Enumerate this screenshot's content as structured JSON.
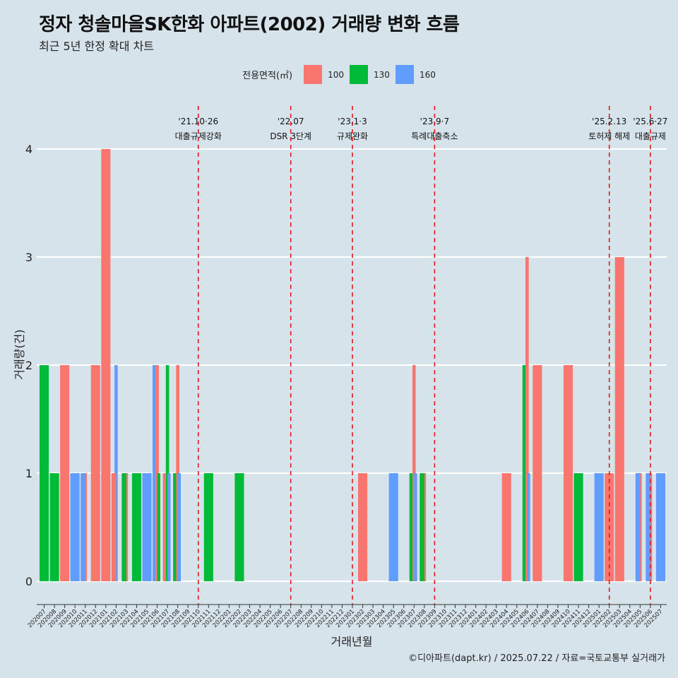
{
  "title": "정자 청솔마을SK한화 아파트(2002) 거래량 변화 흐름",
  "subtitle": "최근 5년 한정 확대 차트",
  "caption": "©디아파트(dapt.kr) / 2025.07.22 / 자료=국토교통부 실거래가",
  "legend": {
    "title": "전용면적(㎡)",
    "items": [
      {
        "label": "100",
        "color": "#f8766d"
      },
      {
        "label": "130",
        "color": "#00ba38"
      },
      {
        "label": "160",
        "color": "#619cff"
      }
    ]
  },
  "chart_data": {
    "type": "bar",
    "xlabel": "거래년월",
    "ylabel": "거래량(건)",
    "ylim": [
      0,
      4
    ],
    "yticks": [
      0,
      1,
      2,
      3,
      4
    ],
    "grid": true,
    "legend_position": "top",
    "categories": [
      "202007",
      "202008",
      "202009",
      "202010",
      "202011",
      "202012",
      "202101",
      "202102",
      "202103",
      "202104",
      "202105",
      "202106",
      "202107",
      "202108",
      "202109",
      "202110",
      "202111",
      "202112",
      "202201",
      "202202",
      "202203",
      "202204",
      "202205",
      "202206",
      "202207",
      "202208",
      "202209",
      "202210",
      "202211",
      "202212",
      "202301",
      "202302",
      "202303",
      "202304",
      "202305",
      "202306",
      "202307",
      "202308",
      "202309",
      "202310",
      "202311",
      "202312",
      "202401",
      "202402",
      "202403",
      "202404",
      "202405",
      "202406",
      "202407",
      "202408",
      "202409",
      "202410",
      "202411",
      "202412",
      "202501",
      "202502",
      "202503",
      "202504",
      "202505",
      "202506",
      "202507"
    ],
    "bars": [
      {
        "month": "202007",
        "segments": [
          {
            "area": "130",
            "value": 2
          }
        ]
      },
      {
        "month": "202008",
        "segments": [
          {
            "area": "130",
            "value": 1
          }
        ]
      },
      {
        "month": "202009",
        "segments": [
          {
            "area": "100",
            "value": 2
          }
        ]
      },
      {
        "month": "202010",
        "segments": [
          {
            "area": "160",
            "value": 1
          }
        ]
      },
      {
        "month": "202011",
        "segments": [
          {
            "area": "100",
            "value": 1
          },
          {
            "area": "160",
            "value": 1
          }
        ]
      },
      {
        "month": "202012",
        "segments": [
          {
            "area": "100",
            "value": 2
          }
        ]
      },
      {
        "month": "202101",
        "segments": [
          {
            "area": "100",
            "value": 4
          }
        ]
      },
      {
        "month": "202102",
        "segments": [
          {
            "area": "100",
            "value": 1
          },
          {
            "area": "160",
            "value": 2
          }
        ]
      },
      {
        "month": "202103",
        "segments": [
          {
            "area": "100",
            "value": 1
          },
          {
            "area": "130",
            "value": 1
          }
        ]
      },
      {
        "month": "202104",
        "segments": [
          {
            "area": "130",
            "value": 1
          }
        ]
      },
      {
        "month": "202105",
        "segments": [
          {
            "area": "160",
            "value": 1
          }
        ]
      },
      {
        "month": "202106",
        "segments": [
          {
            "area": "100",
            "value": 2
          },
          {
            "area": "130",
            "value": 1
          },
          {
            "area": "160",
            "value": 2
          }
        ]
      },
      {
        "month": "202107",
        "segments": [
          {
            "area": "100",
            "value": 1
          },
          {
            "area": "130",
            "value": 2
          },
          {
            "area": "160",
            "value": 1
          }
        ]
      },
      {
        "month": "202108",
        "segments": [
          {
            "area": "100",
            "value": 2
          },
          {
            "area": "130",
            "value": 1
          },
          {
            "area": "160",
            "value": 1
          }
        ]
      },
      {
        "month": "202111",
        "segments": [
          {
            "area": "130",
            "value": 1
          }
        ]
      },
      {
        "month": "202202",
        "segments": [
          {
            "area": "130",
            "value": 1
          }
        ]
      },
      {
        "month": "202302",
        "segments": [
          {
            "area": "100",
            "value": 1
          }
        ]
      },
      {
        "month": "202305",
        "segments": [
          {
            "area": "160",
            "value": 1
          }
        ]
      },
      {
        "month": "202307",
        "segments": [
          {
            "area": "100",
            "value": 2
          },
          {
            "area": "130",
            "value": 1
          },
          {
            "area": "160",
            "value": 1
          }
        ]
      },
      {
        "month": "202308",
        "segments": [
          {
            "area": "100",
            "value": 1
          },
          {
            "area": "130",
            "value": 1
          }
        ]
      },
      {
        "month": "202404",
        "segments": [
          {
            "area": "100",
            "value": 1
          }
        ]
      },
      {
        "month": "202406",
        "segments": [
          {
            "area": "100",
            "value": 3
          },
          {
            "area": "130",
            "value": 2
          },
          {
            "area": "160",
            "value": 1
          }
        ]
      },
      {
        "month": "202407",
        "segments": [
          {
            "area": "100",
            "value": 2
          }
        ]
      },
      {
        "month": "202410",
        "segments": [
          {
            "area": "100",
            "value": 2
          }
        ]
      },
      {
        "month": "202411",
        "segments": [
          {
            "area": "130",
            "value": 1
          }
        ]
      },
      {
        "month": "202501",
        "segments": [
          {
            "area": "160",
            "value": 1
          }
        ]
      },
      {
        "month": "202502",
        "segments": [
          {
            "area": "100",
            "value": 1
          }
        ]
      },
      {
        "month": "202503",
        "segments": [
          {
            "area": "100",
            "value": 3
          }
        ]
      },
      {
        "month": "202505",
        "segments": [
          {
            "area": "100",
            "value": 1
          },
          {
            "area": "160",
            "value": 1
          }
        ]
      },
      {
        "month": "202506",
        "segments": [
          {
            "area": "100",
            "value": 1
          },
          {
            "area": "160",
            "value": 1
          }
        ]
      },
      {
        "month": "202507",
        "segments": [
          {
            "area": "160",
            "value": 1
          }
        ]
      }
    ],
    "annotations": [
      {
        "month": "202110",
        "date": "'21.10·26",
        "label": "대출규제강화"
      },
      {
        "month": "202207",
        "date": "'22.07",
        "label": "DSR 3단계"
      },
      {
        "month": "202301",
        "date": "'23.1·3",
        "label": "규제완화"
      },
      {
        "month": "202309",
        "date": "'23.9·7",
        "label": "특례대출축소"
      },
      {
        "month": "202502",
        "date": "'25.2.13",
        "label": "토허제 해제"
      },
      {
        "month": "202506",
        "date": "'25.6·27",
        "label": "대출규제"
      }
    ]
  }
}
